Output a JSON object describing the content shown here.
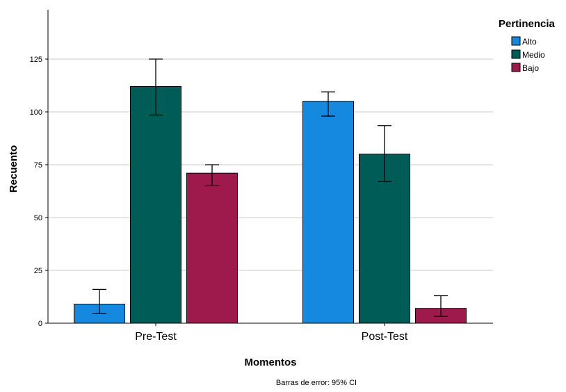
{
  "chart_data": {
    "type": "bar",
    "categories": [
      "Pre-Test",
      "Post-Test"
    ],
    "series": [
      {
        "name": "Alto",
        "color": "#1589e0",
        "values": [
          9,
          105
        ],
        "ci_low": [
          4.5,
          98
        ],
        "ci_high": [
          16,
          109.5
        ]
      },
      {
        "name": "Medio",
        "color": "#005c57",
        "values": [
          112,
          80
        ],
        "ci_low": [
          98.5,
          67
        ],
        "ci_high": [
          125,
          93.5
        ]
      },
      {
        "name": "Bajo",
        "color": "#9e1a4c",
        "values": [
          71,
          7
        ],
        "ci_low": [
          65,
          3.2
        ],
        "ci_high": [
          75,
          13
        ]
      }
    ],
    "xlabel": "Momentos",
    "ylabel": "Recuento",
    "yticks": [
      0,
      25,
      50,
      75,
      100,
      125
    ],
    "ylim": [
      0,
      147.4
    ],
    "legend_title": "Pertinencia",
    "legend_position": "top-right",
    "grid": "horizontal",
    "footnote": "Barras de error: 95% CI"
  }
}
